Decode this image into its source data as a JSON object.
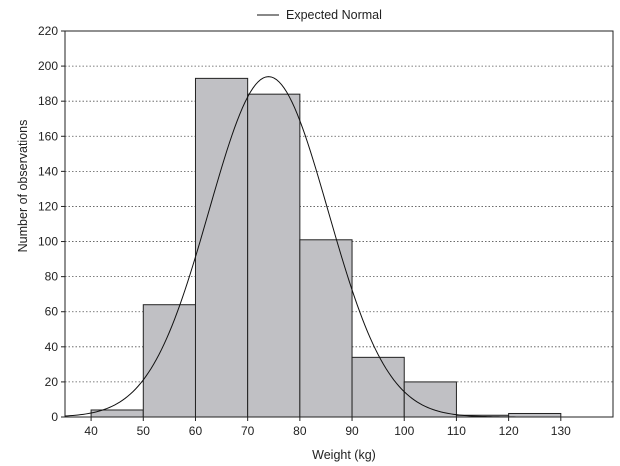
{
  "chart_data": {
    "type": "bar",
    "subtype": "histogram",
    "title": "",
    "xlabel": "Weight (kg)",
    "ylabel": "Number of observations",
    "xlim": [
      35,
      140
    ],
    "ylim": [
      0,
      220
    ],
    "x_ticks": [
      40,
      50,
      60,
      70,
      80,
      90,
      100,
      110,
      120,
      130
    ],
    "y_ticks": [
      0,
      20,
      40,
      60,
      80,
      100,
      120,
      140,
      160,
      180,
      200,
      220
    ],
    "grid": "horizontal dotted",
    "legend_position": "top-center",
    "bar_color": "#c0c0c4",
    "bins": [
      {
        "from": 40,
        "to": 50,
        "value": 4
      },
      {
        "from": 50,
        "to": 60,
        "value": 64
      },
      {
        "from": 60,
        "to": 70,
        "value": 193
      },
      {
        "from": 70,
        "to": 80,
        "value": 184
      },
      {
        "from": 80,
        "to": 90,
        "value": 101
      },
      {
        "from": 90,
        "to": 100,
        "value": 34
      },
      {
        "from": 100,
        "to": 110,
        "value": 20
      },
      {
        "from": 110,
        "to": 120,
        "value": 1
      },
      {
        "from": 120,
        "to": 130,
        "value": 2
      }
    ],
    "series": [
      {
        "name": "Expected Normal",
        "type": "line",
        "mean": 74,
        "sd": 11.4,
        "peak": 194
      }
    ]
  }
}
